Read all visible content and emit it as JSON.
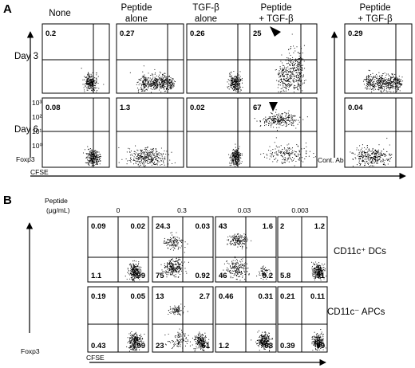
{
  "panel_a": {
    "letter": "A",
    "column_headers": [
      [
        "None"
      ],
      [
        "Peptide",
        "alone"
      ],
      [
        "TGF-β",
        "alone"
      ],
      [
        "Peptide",
        "+ TGF-β"
      ],
      [
        "Peptide",
        "+ TGF-β"
      ]
    ],
    "row_labels": [
      "Day 3",
      "Day 6"
    ],
    "y_axis_label": "Foxp3",
    "x_axis_label": "CFSE",
    "control_label": "Cont. Ab",
    "percentages": [
      [
        "0.2",
        "0.27",
        "0.26",
        "25",
        "0.29"
      ],
      [
        "0.08",
        "1.3",
        "0.02",
        "67",
        "0.04"
      ]
    ],
    "tick_labels_day6": [
      "10³",
      "10²",
      "10¹",
      "10⁰"
    ]
  },
  "panel_b": {
    "letter": "B",
    "dose_title": [
      "Peptide",
      "(μg/mL)"
    ],
    "doses": [
      "0",
      "0.3",
      "0.03",
      "0.003"
    ],
    "row_labels": [
      "CD11c⁺ DCs",
      "CD11c⁻ APCs"
    ],
    "y_axis_label": "Foxp3",
    "x_axis_label": "CFSE",
    "quadrants": [
      [
        {
          "ul": "0.09",
          "ur": "0.02",
          "ll": "1.1",
          "lr": "99"
        },
        {
          "ul": "24.3",
          "ur": "0.03",
          "ll": "75",
          "lr": "0.92"
        },
        {
          "ul": "43",
          "ur": "1.6",
          "ll": "46",
          "lr": "9.2"
        },
        {
          "ul": "2",
          "ur": "1.2",
          "ll": "5.8",
          "lr": "91"
        }
      ],
      [
        {
          "ul": "0.19",
          "ur": "0.05",
          "ll": "0.43",
          "lr": "99"
        },
        {
          "ul": "13",
          "ur": "2.7",
          "ll": "23",
          "lr": "61"
        },
        {
          "ul": "0.46",
          "ur": "0.31",
          "ll": "1.2",
          "lr": "98"
        },
        {
          "ul": "0.21",
          "ur": "0.11",
          "ll": "0.39",
          "lr": "99"
        }
      ]
    ]
  }
}
